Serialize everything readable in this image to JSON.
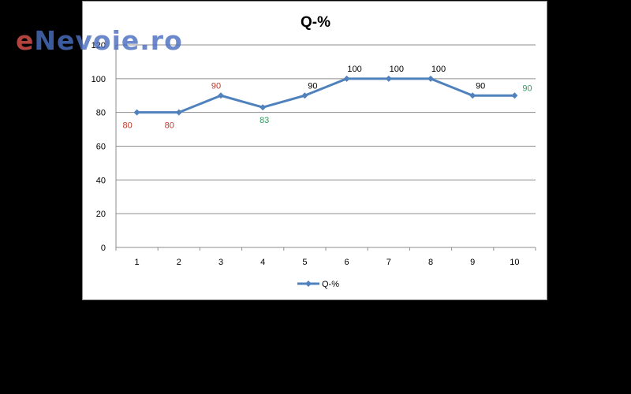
{
  "watermark": {
    "first_letter": "e",
    "rest": "Nevoie.ro"
  },
  "colors": {
    "line": "#4f81bd",
    "label_red": "#c0392b",
    "label_green": "#2e9e5b",
    "label_dark": "#000000",
    "grid": "#8c8c8c",
    "text": "#000000"
  },
  "chart_data": {
    "type": "line",
    "title": "Q-%",
    "xlabel": "",
    "ylabel": "",
    "x": [
      1,
      2,
      3,
      4,
      5,
      6,
      7,
      8,
      9,
      10
    ],
    "ylim": [
      0,
      120
    ],
    "yticks": [
      0,
      20,
      40,
      60,
      80,
      100,
      120
    ],
    "grid": true,
    "legend": "bottom",
    "marker": "diamond",
    "series": [
      {
        "name": "Q-%",
        "values": [
          80,
          80,
          90,
          83,
          90,
          100,
          100,
          100,
          90,
          90
        ]
      }
    ],
    "data_labels": [
      {
        "text": "80",
        "color": "red",
        "position": "below"
      },
      {
        "text": "80",
        "color": "red",
        "position": "below"
      },
      {
        "text": "90",
        "color": "red",
        "position": "above"
      },
      {
        "text": "83",
        "color": "green",
        "position": "below"
      },
      {
        "text": "90",
        "color": "dark",
        "position": "above"
      },
      {
        "text": "100",
        "color": "dark",
        "position": "above"
      },
      {
        "text": "100",
        "color": "dark",
        "position": "above"
      },
      {
        "text": "100",
        "color": "dark",
        "position": "above"
      },
      {
        "text": "90",
        "color": "dark",
        "position": "above"
      },
      {
        "text": "90",
        "color": "green",
        "position": "right"
      }
    ]
  }
}
